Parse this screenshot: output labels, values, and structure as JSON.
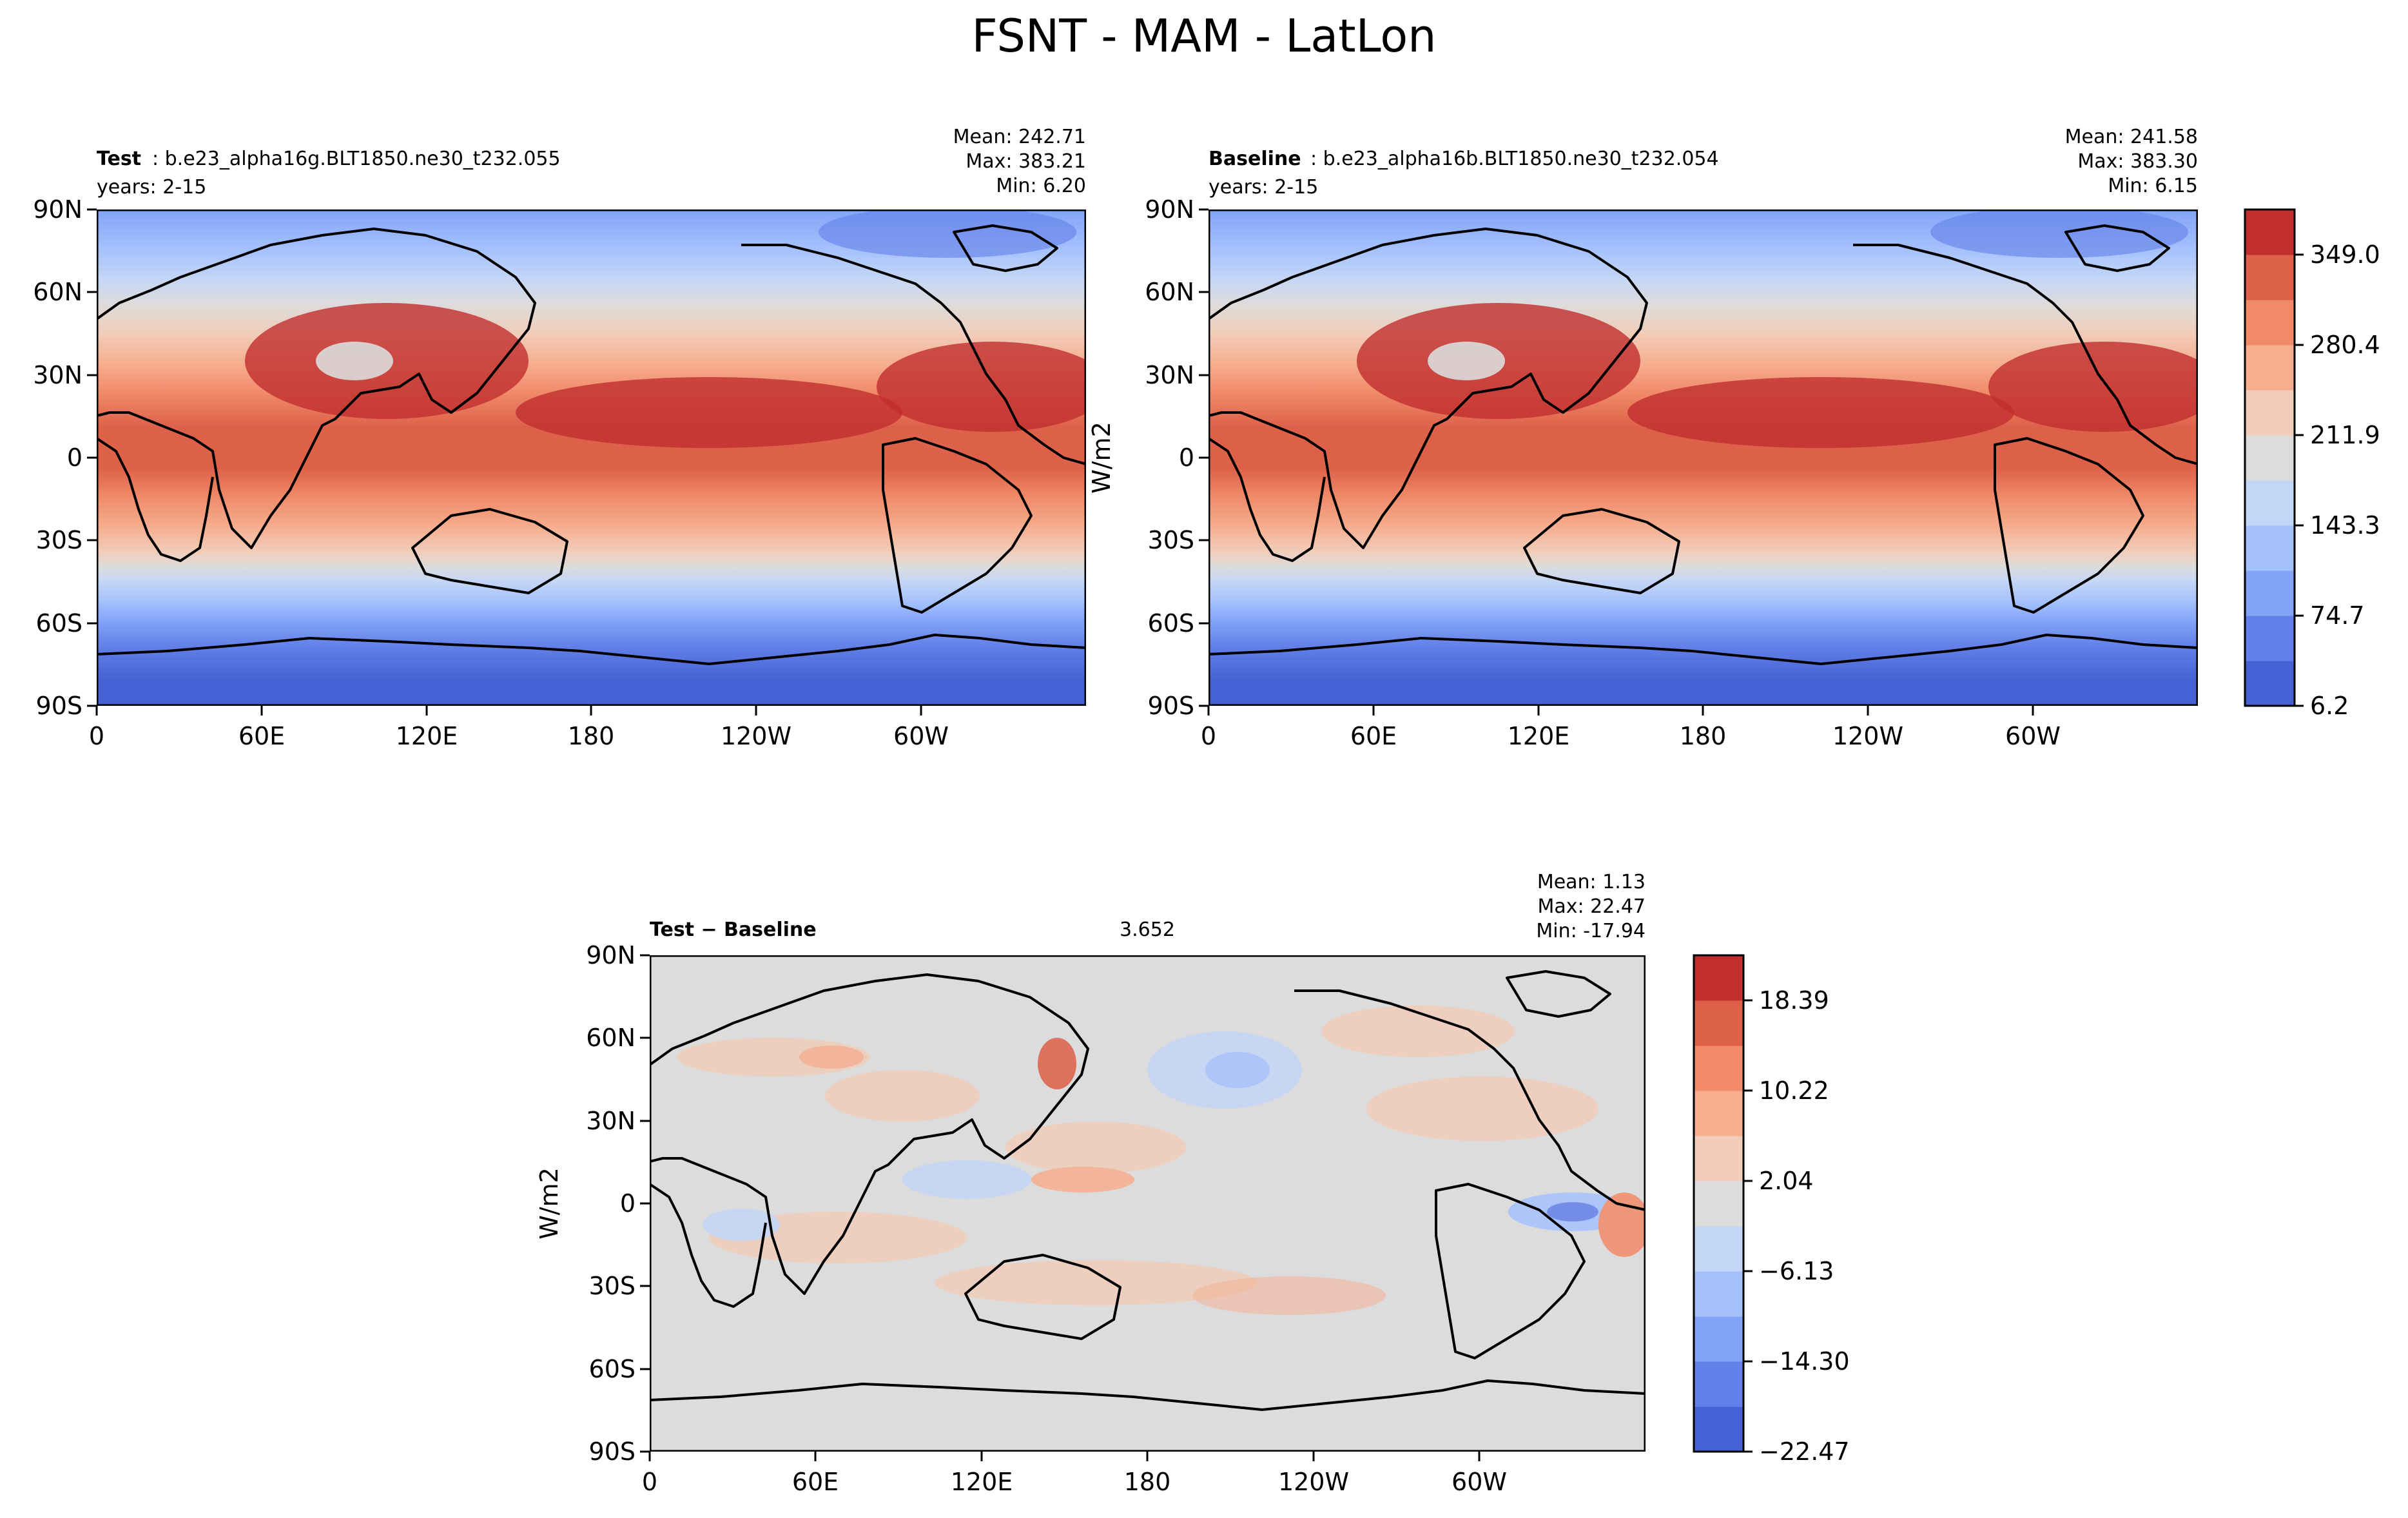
{
  "figure_title": "FSNT - MAM - LatLon",
  "chart_data": [
    {
      "type": "heatmap",
      "panel": "test",
      "label_bold": "Test",
      "label_rest": ": b.e23_alpha16g.BLT1850.ne30_t232.055",
      "years": "years: 2-15",
      "stats": [
        "Mean: 242.71",
        "Max: 383.21",
        "Min:  6.20"
      ],
      "x_ticks": [
        "0",
        "60E",
        "120E",
        "180",
        "120W",
        "60W"
      ],
      "y_ticks": [
        "90N",
        "60N",
        "30N",
        "0",
        "30S",
        "60S",
        "90S"
      ],
      "xlim": [
        0,
        360
      ],
      "ylim": [
        -90,
        90
      ],
      "units": "W/m2",
      "mean": 242.71,
      "max": 383.21,
      "min": 6.2
    },
    {
      "type": "heatmap",
      "panel": "baseline",
      "label_bold": "Baseline",
      "label_rest": ": b.e23_alpha16b.BLT1850.ne30_t232.054",
      "years": "years: 2-15",
      "stats": [
        "Mean: 241.58",
        "Max: 383.30",
        "Min:  6.15"
      ],
      "x_ticks": [
        "0",
        "60E",
        "120E",
        "180",
        "120W",
        "60W"
      ],
      "y_ticks": [
        "90N",
        "60N",
        "30N",
        "0",
        "30S",
        "60S",
        "90S"
      ],
      "xlim": [
        0,
        360
      ],
      "ylim": [
        -90,
        90
      ],
      "units": "W/m2",
      "ylabel": "W/m2",
      "mean": 241.58,
      "max": 383.3,
      "min": 6.15,
      "colorbar": {
        "levels": [
          6.2,
          40.4,
          74.7,
          109.0,
          143.3,
          177.6,
          211.9,
          246.2,
          280.4,
          314.7,
          349.0,
          383.3
        ],
        "tick_labels": [
          "6.2",
          "74.7",
          "143.3",
          "211.9",
          "280.4",
          "349.0"
        ],
        "tick_values": [
          6.2,
          74.7,
          143.3,
          211.9,
          280.4,
          349.0
        ],
        "colors": [
          "#4561d3",
          "#6280e8",
          "#83a3f6",
          "#a5c1fd",
          "#c4d6f6",
          "#dcdcdc",
          "#f1cdba",
          "#f6ae8f",
          "#f08a69",
          "#dd6049",
          "#c12e2e"
        ]
      }
    },
    {
      "type": "heatmap",
      "panel": "difference",
      "label_bold": "Test − Baseline",
      "rmse": 3.652,
      "stats": [
        "Mean:  1.13",
        "Max: 22.47",
        "Min: -17.94"
      ],
      "x_ticks": [
        "0",
        "60E",
        "120E",
        "180",
        "120W",
        "60W"
      ],
      "y_ticks": [
        "90N",
        "60N",
        "30N",
        "0",
        "30S",
        "60S",
        "90S"
      ],
      "xlim": [
        0,
        360
      ],
      "ylim": [
        -90,
        90
      ],
      "ylabel": "W/m2",
      "mean": 1.13,
      "max": 22.47,
      "min": -17.94,
      "colorbar": {
        "levels": [
          -22.47,
          -18.39,
          -14.3,
          -10.22,
          -6.13,
          -2.04,
          2.04,
          6.13,
          10.22,
          14.3,
          18.39,
          22.47
        ],
        "tick_labels": [
          "−22.47",
          "−14.30",
          "−6.13",
          "2.04",
          "10.22",
          "18.39"
        ],
        "tick_values": [
          -22.47,
          -14.3,
          -6.13,
          2.04,
          10.22,
          18.39
        ],
        "colors": [
          "#4561d3",
          "#6280e8",
          "#83a3f6",
          "#a5c1fd",
          "#c4d6f6",
          "#dcdcdc",
          "#f1cdba",
          "#f6ae8f",
          "#f08a69",
          "#dd6049",
          "#c12e2e"
        ]
      }
    }
  ]
}
